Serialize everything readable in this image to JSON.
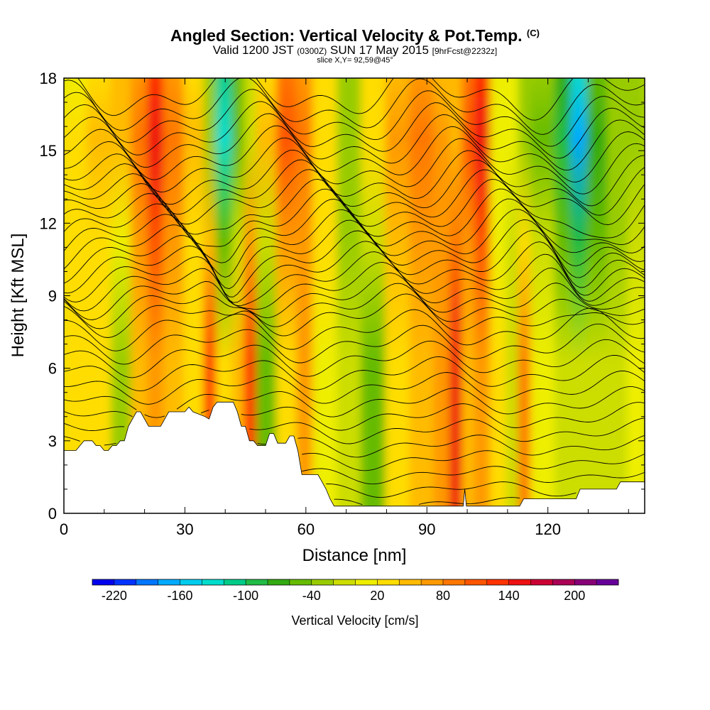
{
  "title": {
    "main": "Angled Section: Vertical Velocity & Pot.Temp.",
    "main_unit": "(C)",
    "valid_prefix": "Valid 1200 JST",
    "valid_utc": "(0300Z)",
    "valid_date": "SUN 17 May 2015",
    "forecast": "[9hrFcst@2232z]",
    "slice": "slice X,Y= 92,59@45°"
  },
  "chart_data": {
    "type": "heatmap",
    "xlabel": "Distance [nm]",
    "ylabel": "Height [Kft MSL]",
    "xlim": [
      0,
      144
    ],
    "ylim": [
      0,
      18
    ],
    "x_ticks": [
      "0",
      "30",
      "60",
      "90",
      "120"
    ],
    "y_ticks": [
      "0",
      "3",
      "6",
      "9",
      "12",
      "15",
      "18"
    ],
    "colorbar": {
      "title": "Vertical Velocity [cm/s]",
      "labels": [
        "-220",
        "-160",
        "-100",
        "-40",
        "20",
        "80",
        "140",
        "200"
      ],
      "min": -240,
      "max": 240,
      "colors": [
        "#0000ee",
        "#0033ff",
        "#0077ff",
        "#00aaff",
        "#00ccee",
        "#00ddcc",
        "#00cc88",
        "#22bb44",
        "#33aa11",
        "#66bb00",
        "#99cc00",
        "#ccdd00",
        "#eeee00",
        "#ffdd00",
        "#ffbb00",
        "#ff9900",
        "#ff7700",
        "#ff5500",
        "#ff3300",
        "#ee1111",
        "#cc0033",
        "#aa0055",
        "#880077",
        "#660099"
      ]
    },
    "columns": [
      {
        "x": [
          0,
          6
        ],
        "base": 20,
        "upper": 20
      },
      {
        "x": [
          6,
          12
        ],
        "base": 20,
        "upper": 40
      },
      {
        "x": [
          12,
          17
        ],
        "base": -30,
        "upper": 50
      },
      {
        "x": [
          17,
          21
        ],
        "base": 40,
        "upper": 90
      },
      {
        "x": [
          21,
          25
        ],
        "base": 60,
        "upper": 150
      },
      {
        "x": [
          25,
          30
        ],
        "base": 40,
        "upper": 90
      },
      {
        "x": [
          30,
          35
        ],
        "base": 30,
        "upper": 40
      },
      {
        "x": [
          35,
          38
        ],
        "base": 120,
        "upper": -40
      },
      {
        "x": [
          38,
          42
        ],
        "base": 20,
        "upper": -140
      },
      {
        "x": [
          42,
          45
        ],
        "base": 40,
        "upper": -60
      },
      {
        "x": [
          45,
          48
        ],
        "base": 130,
        "upper": -10
      },
      {
        "x": [
          48,
          53
        ],
        "base": -60,
        "upper": 40
      },
      {
        "x": [
          53,
          58
        ],
        "base": 20,
        "upper": 110
      },
      {
        "x": [
          58,
          62
        ],
        "base": 60,
        "upper": 80
      },
      {
        "x": [
          62,
          68
        ],
        "base": 10,
        "upper": 30
      },
      {
        "x": [
          68,
          74
        ],
        "base": -20,
        "upper": -30
      },
      {
        "x": [
          74,
          80
        ],
        "base": -50,
        "upper": 30
      },
      {
        "x": [
          80,
          86
        ],
        "base": 30,
        "upper": 60
      },
      {
        "x": [
          86,
          92
        ],
        "base": 40,
        "upper": 90
      },
      {
        "x": [
          92,
          96
        ],
        "base": 60,
        "upper": 60
      },
      {
        "x": [
          96,
          99
        ],
        "base": 140,
        "upper": 50
      },
      {
        "x": [
          99,
          102
        ],
        "base": 40,
        "upper": 110
      },
      {
        "x": [
          102,
          106
        ],
        "base": 60,
        "upper": 150
      },
      {
        "x": [
          106,
          110
        ],
        "base": 20,
        "upper": 10
      },
      {
        "x": [
          110,
          113
        ],
        "base": -10,
        "upper": 0
      },
      {
        "x": [
          113,
          116
        ],
        "base": 90,
        "upper": -30
      },
      {
        "x": [
          116,
          122
        ],
        "base": 10,
        "upper": -50
      },
      {
        "x": [
          122,
          126
        ],
        "base": -10,
        "upper": -100
      },
      {
        "x": [
          126,
          130
        ],
        "base": -20,
        "upper": -170
      },
      {
        "x": [
          130,
          135
        ],
        "base": -20,
        "upper": -70
      },
      {
        "x": [
          135,
          140
        ],
        "base": -10,
        "upper": -40
      },
      {
        "x": [
          140,
          144
        ],
        "base": 0,
        "upper": -40
      }
    ],
    "terrain_kft": [
      [
        0,
        2.6
      ],
      [
        3,
        2.6
      ],
      [
        5,
        3.0
      ],
      [
        7,
        3.0
      ],
      [
        8,
        2.8
      ],
      [
        9,
        2.8
      ],
      [
        10,
        2.6
      ],
      [
        11,
        2.6
      ],
      [
        12,
        2.8
      ],
      [
        13,
        2.8
      ],
      [
        14,
        3.0
      ],
      [
        15,
        3.0
      ],
      [
        16,
        3.6
      ],
      [
        17,
        3.9
      ],
      [
        18,
        4.2
      ],
      [
        19,
        4.2
      ],
      [
        20,
        3.9
      ],
      [
        21,
        3.6
      ],
      [
        22,
        3.6
      ],
      [
        24,
        3.6
      ],
      [
        25,
        3.9
      ],
      [
        26,
        4.2
      ],
      [
        30,
        4.2
      ],
      [
        31,
        4.4
      ],
      [
        32,
        4.2
      ],
      [
        35,
        4.0
      ],
      [
        36,
        3.9
      ],
      [
        37,
        4.4
      ],
      [
        38,
        4.6
      ],
      [
        42,
        4.6
      ],
      [
        43,
        4.2
      ],
      [
        44,
        3.6
      ],
      [
        45,
        3.6
      ],
      [
        46,
        3.0
      ],
      [
        47,
        3.0
      ],
      [
        48,
        2.8
      ],
      [
        50,
        2.8
      ],
      [
        51,
        3.3
      ],
      [
        52,
        3.3
      ],
      [
        53,
        2.9
      ],
      [
        55,
        2.9
      ],
      [
        56,
        3.2
      ],
      [
        57,
        3.2
      ],
      [
        58,
        2.6
      ],
      [
        59,
        1.6
      ],
      [
        63,
        1.6
      ],
      [
        64,
        1.3
      ],
      [
        65,
        1.0
      ],
      [
        66,
        0.6
      ],
      [
        67,
        0.3
      ],
      [
        99,
        0.3
      ],
      [
        99.4,
        1.0
      ],
      [
        99.8,
        0.3
      ],
      [
        113,
        0.3
      ],
      [
        114,
        0.6
      ],
      [
        120,
        0.6
      ],
      [
        127,
        0.6
      ],
      [
        128,
        1.0
      ],
      [
        137,
        1.0
      ],
      [
        138,
        1.3
      ],
      [
        144,
        1.3
      ]
    ],
    "isentropes_kft": [
      0.4,
      1.0,
      1.6,
      2.2,
      2.8,
      3.4,
      4.0,
      4.6,
      5.2,
      5.8,
      6.4,
      7.0,
      7.6,
      8.2,
      8.6,
      9.0,
      9.4,
      9.8,
      10.2,
      10.6,
      11.0,
      11.4,
      11.8,
      12.2,
      12.6,
      13.0,
      13.4,
      13.8,
      14.3,
      14.8,
      15.3,
      15.8,
      16.3,
      16.8,
      17.4
    ]
  }
}
